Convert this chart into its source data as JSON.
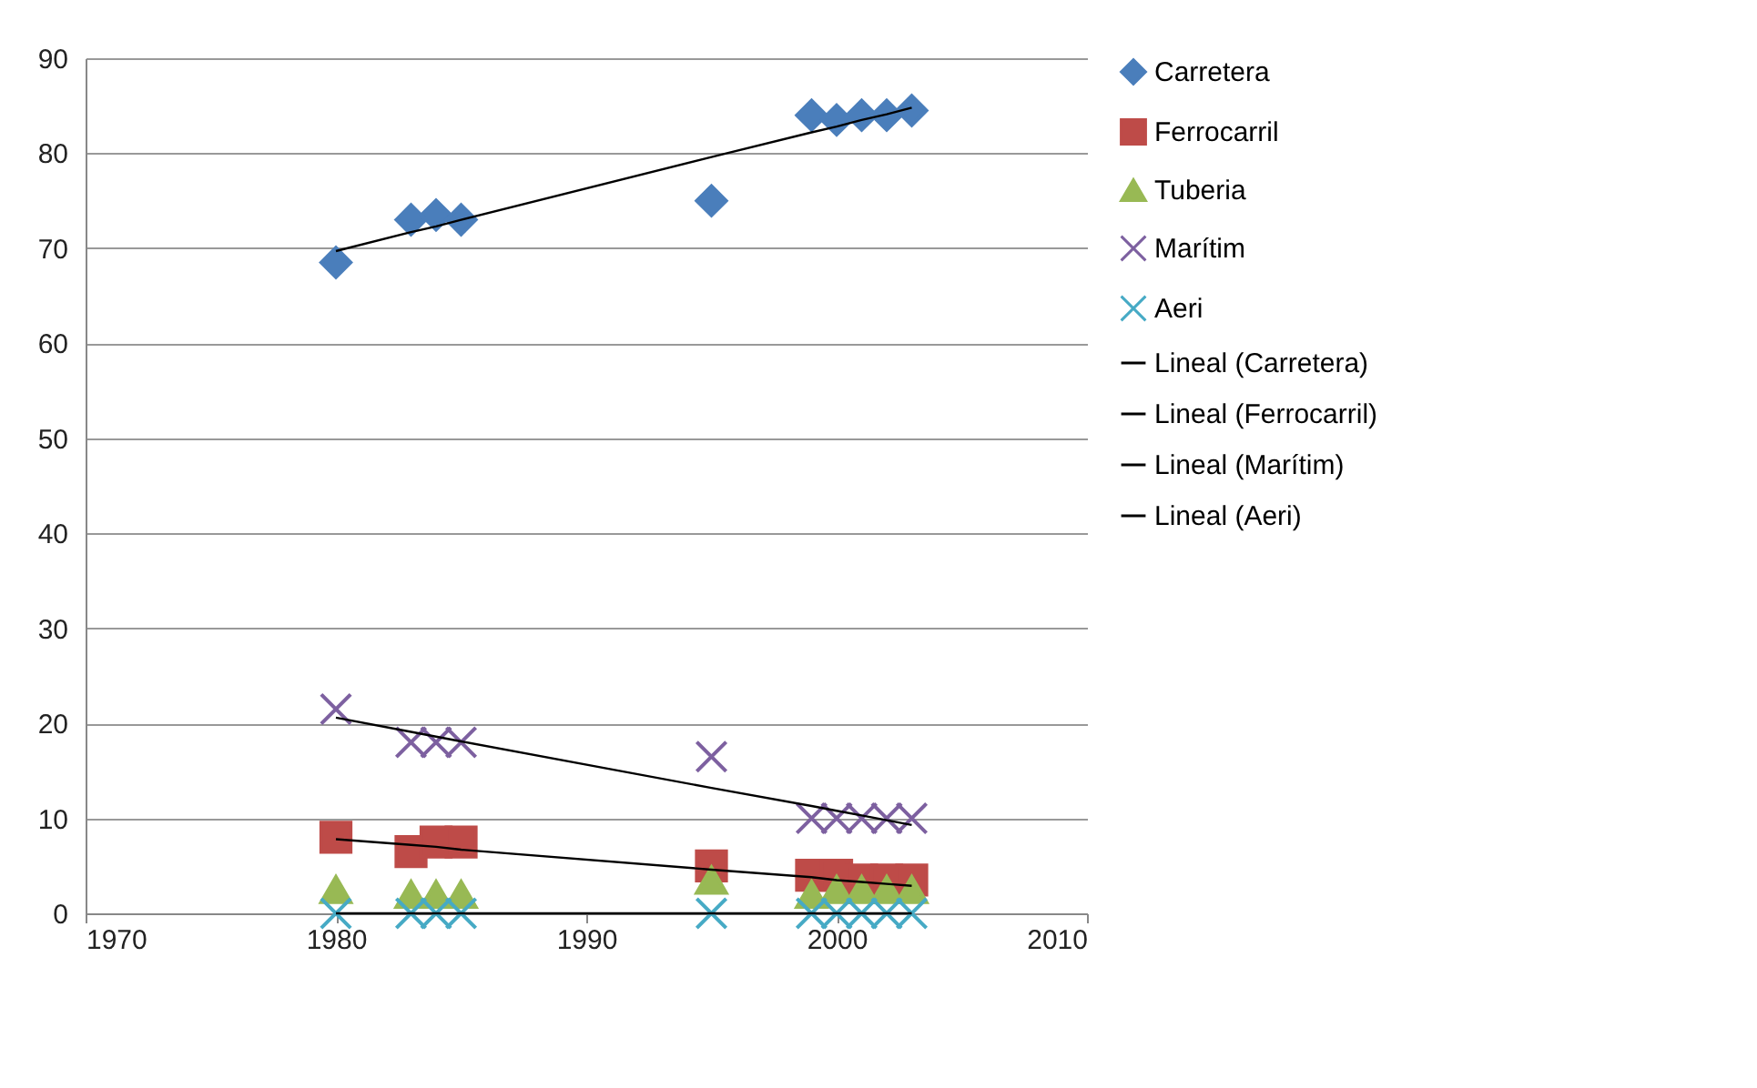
{
  "chart_data": {
    "type": "scatter",
    "x": [
      1980,
      1983,
      1984,
      1985,
      1995,
      1999,
      2000,
      2001,
      2002,
      2003
    ],
    "series": [
      {
        "name": "Carretera",
        "color": "#4a7ebb",
        "marker": "diamond",
        "values": [
          68.5,
          73,
          73.5,
          73,
          75,
          84,
          83.5,
          84,
          84,
          84.5
        ]
      },
      {
        "name": "Ferrocarril",
        "color": "#be4b48",
        "marker": "square",
        "values": [
          8,
          6.5,
          7.5,
          7.5,
          5,
          4,
          4,
          3.5,
          3.5,
          3.5
        ]
      },
      {
        "name": "Tuberia",
        "color": "#98b954",
        "marker": "triangle",
        "values": [
          2.5,
          2,
          2,
          2,
          3.5,
          2,
          2.5,
          2.5,
          2.5,
          2.5
        ]
      },
      {
        "name": "Marítim",
        "color": "#7d60a0",
        "marker": "cross",
        "values": [
          21.5,
          18,
          18,
          18,
          16.5,
          10,
          10,
          10,
          10,
          10
        ]
      },
      {
        "name": "Aeri",
        "color": "#46aac5",
        "marker": "cross",
        "values": [
          0,
          0,
          0,
          0,
          0,
          0,
          0,
          0,
          0,
          0
        ]
      },
      {
        "name": "Lineal (Carretera)",
        "type": "line",
        "color": "#000000",
        "values": [
          69.7,
          71.7,
          72.3,
          73.0,
          79.6,
          82.2,
          82.8,
          83.5,
          84.1,
          84.8
        ]
      },
      {
        "name": "Lineal (Ferrocarril)",
        "type": "line",
        "color": "#000000",
        "values": [
          7.8,
          7.2,
          7.0,
          6.7,
          4.6,
          3.8,
          3.5,
          3.3,
          3.1,
          2.9
        ]
      },
      {
        "name": "Lineal (Marítim)",
        "type": "line",
        "color": "#000000",
        "values": [
          20.6,
          19.1,
          18.6,
          18.1,
          13.2,
          11.3,
          10.8,
          10.3,
          9.8,
          9.3
        ]
      },
      {
        "name": "Lineal (Aeri)",
        "type": "line",
        "color": "#000000",
        "values": [
          0,
          0,
          0,
          0,
          0,
          0,
          0,
          0,
          0,
          0
        ]
      }
    ],
    "xlim": [
      1970,
      2010
    ],
    "xticks": [
      1970,
      1980,
      1990,
      2000,
      2010
    ],
    "ylim": [
      0,
      90
    ],
    "yticks": [
      0,
      10,
      20,
      30,
      40,
      50,
      60,
      70,
      80,
      90
    ],
    "grid": "y",
    "legend": "right"
  }
}
